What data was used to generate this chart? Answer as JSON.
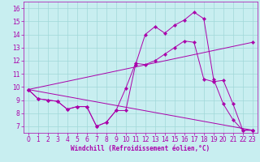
{
  "xlabel": "Windchill (Refroidissement éolien,°C)",
  "bg_color": "#c8eef0",
  "line_color": "#aa00aa",
  "grid_color": "#a0d8d8",
  "xlim": [
    -0.5,
    23.5
  ],
  "ylim": [
    6.5,
    16.5
  ],
  "xticks": [
    0,
    1,
    2,
    3,
    4,
    5,
    6,
    7,
    8,
    9,
    10,
    11,
    12,
    13,
    14,
    15,
    16,
    17,
    18,
    19,
    20,
    21,
    22,
    23
  ],
  "yticks": [
    7,
    8,
    9,
    10,
    11,
    12,
    13,
    14,
    15,
    16
  ],
  "line1_x": [
    0,
    1,
    2,
    3,
    4,
    5,
    6,
    7,
    8,
    9,
    10,
    11,
    12,
    13,
    14,
    15,
    16,
    17,
    18,
    19,
    20,
    21,
    22,
    23
  ],
  "line1_y": [
    9.8,
    9.1,
    9.0,
    8.9,
    8.3,
    8.5,
    8.5,
    7.0,
    7.3,
    8.2,
    8.2,
    11.7,
    14.0,
    14.6,
    14.1,
    14.7,
    15.1,
    15.7,
    15.2,
    10.6,
    8.7,
    7.5,
    6.7,
    6.7
  ],
  "line2_x": [
    0,
    1,
    2,
    3,
    4,
    5,
    6,
    7,
    8,
    9,
    10,
    11,
    12,
    13,
    14,
    15,
    16,
    17,
    18,
    19,
    20,
    21,
    22,
    23
  ],
  "line2_y": [
    9.8,
    9.1,
    9.0,
    8.9,
    8.3,
    8.5,
    8.5,
    7.0,
    7.3,
    8.2,
    9.9,
    11.8,
    11.7,
    12.0,
    12.5,
    13.0,
    13.5,
    13.4,
    10.6,
    10.4,
    10.5,
    8.7,
    6.7,
    6.7
  ],
  "line3_x": [
    0,
    23
  ],
  "line3_y": [
    9.8,
    6.7
  ],
  "line4_x": [
    0,
    23
  ],
  "line4_y": [
    9.8,
    13.4
  ],
  "marker": "D",
  "markersize": 2.2,
  "linewidth": 0.7,
  "tick_fontsize": 5.5,
  "xlabel_fontsize": 5.5
}
